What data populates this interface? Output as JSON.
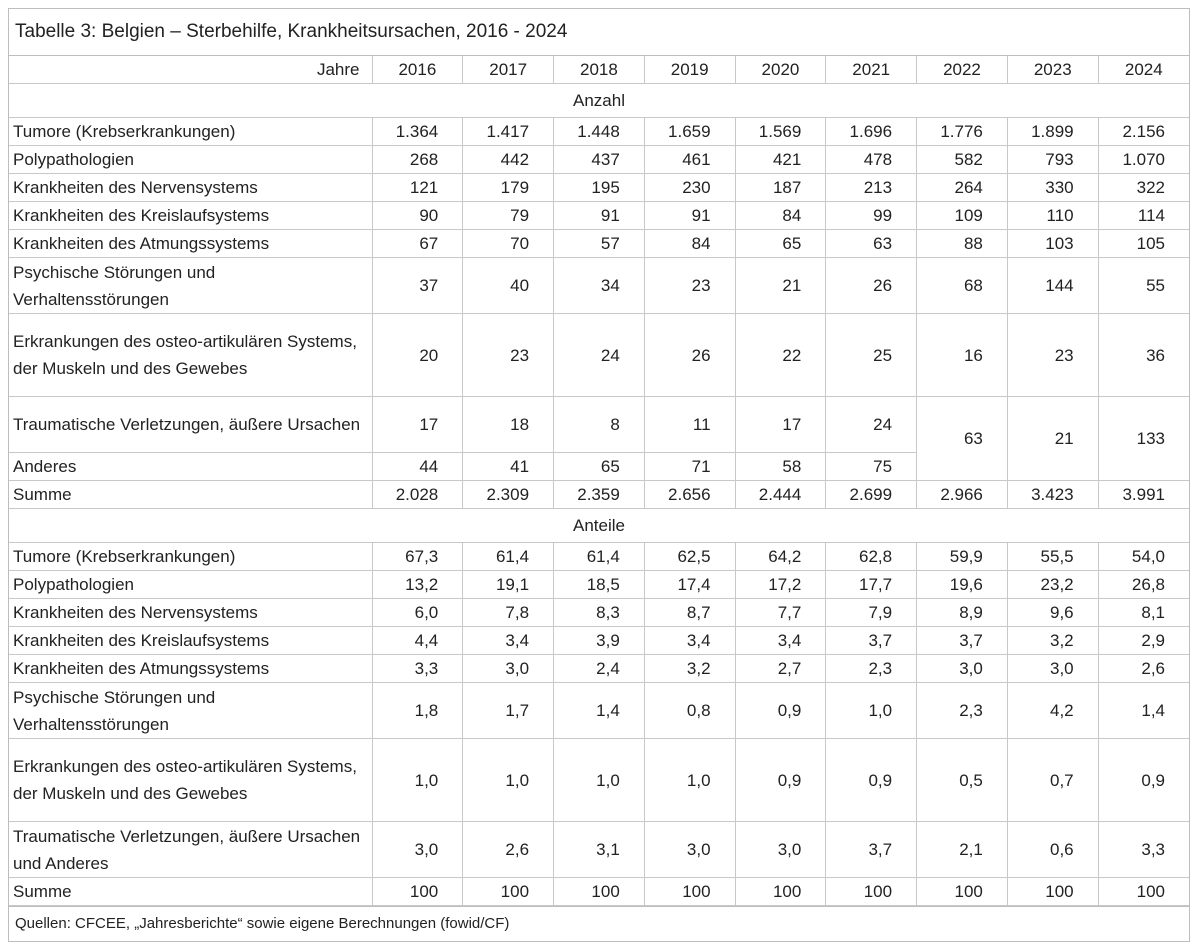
{
  "title": "Tabelle 3: Belgien – Sterbehilfe, Krankheitsursachen, 2016 - 2024",
  "header_label": "Jahre",
  "years": [
    "2016",
    "2017",
    "2018",
    "2019",
    "2020",
    "2021",
    "2022",
    "2023",
    "2024"
  ],
  "sections": [
    {
      "label": "Anzahl",
      "rows": [
        {
          "label": "Tumore (Krebserkrankungen)",
          "lines": 1,
          "values": [
            "1.364",
            "1.417",
            "1.448",
            "1.659",
            "1.569",
            "1.696",
            "1.776",
            "1.899",
            "2.156"
          ]
        },
        {
          "label": "Polypathologien",
          "lines": 1,
          "values": [
            "268",
            "442",
            "437",
            "461",
            "421",
            "478",
            "582",
            "793",
            "1.070"
          ]
        },
        {
          "label": "Krankheiten des Nervensystems",
          "lines": 1,
          "values": [
            "121",
            "179",
            "195",
            "230",
            "187",
            "213",
            "264",
            "330",
            "322"
          ]
        },
        {
          "label": "Krankheiten des Kreislaufsystems",
          "lines": 1,
          "values": [
            "90",
            "79",
            "91",
            "91",
            "84",
            "99",
            "109",
            "110",
            "114"
          ]
        },
        {
          "label": "Krankheiten des Atmungssystems",
          "lines": 1,
          "values": [
            "67",
            "70",
            "57",
            "84",
            "65",
            "63",
            "88",
            "103",
            "105"
          ]
        },
        {
          "label": "Psychische Störungen und Verhaltensstörungen",
          "lines": 2,
          "values": [
            "37",
            "40",
            "34",
            "23",
            "21",
            "26",
            "68",
            "144",
            "55"
          ]
        },
        {
          "label": "Erkrankungen des osteo-artikulären Systems, der Muskeln und des Gewebes",
          "lines": 3,
          "values": [
            "20",
            "23",
            "24",
            "26",
            "22",
            "25",
            "16",
            "23",
            "36"
          ]
        },
        {
          "label": "Traumatische Verletzungen, äußere Ursachen",
          "lines": 2,
          "values": [
            "17",
            "18",
            "8",
            "11",
            "17",
            "24",
            "63",
            "21",
            "133"
          ],
          "merge_last": 3
        },
        {
          "label": "Anderes",
          "lines": 1,
          "values": [
            "44",
            "41",
            "65",
            "71",
            "58",
            "75"
          ]
        },
        {
          "label": "Summe",
          "lines": 1,
          "values": [
            "2.028",
            "2.309",
            "2.359",
            "2.656",
            "2.444",
            "2.699",
            "2.966",
            "3.423",
            "3.991"
          ]
        }
      ]
    },
    {
      "label": "Anteile",
      "rows": [
        {
          "label": "Tumore (Krebserkrankungen)",
          "lines": 1,
          "values": [
            "67,3",
            "61,4",
            "61,4",
            "62,5",
            "64,2",
            "62,8",
            "59,9",
            "55,5",
            "54,0"
          ]
        },
        {
          "label": "Polypathologien",
          "lines": 1,
          "values": [
            "13,2",
            "19,1",
            "18,5",
            "17,4",
            "17,2",
            "17,7",
            "19,6",
            "23,2",
            "26,8"
          ]
        },
        {
          "label": "Krankheiten des Nervensystems",
          "lines": 1,
          "values": [
            "6,0",
            "7,8",
            "8,3",
            "8,7",
            "7,7",
            "7,9",
            "8,9",
            "9,6",
            "8,1"
          ]
        },
        {
          "label": "Krankheiten des Kreislaufsystems",
          "lines": 1,
          "values": [
            "4,4",
            "3,4",
            "3,9",
            "3,4",
            "3,4",
            "3,7",
            "3,7",
            "3,2",
            "2,9"
          ]
        },
        {
          "label": "Krankheiten des Atmungssystems",
          "lines": 1,
          "values": [
            "3,3",
            "3,0",
            "2,4",
            "3,2",
            "2,7",
            "2,3",
            "3,0",
            "3,0",
            "2,6"
          ]
        },
        {
          "label": "Psychische Störungen und Verhaltensstörungen",
          "lines": 2,
          "values": [
            "1,8",
            "1,7",
            "1,4",
            "0,8",
            "0,9",
            "1,0",
            "2,3",
            "4,2",
            "1,4"
          ]
        },
        {
          "label": "Erkrankungen des osteo-artikulären Systems, der Muskeln und des Gewebes",
          "lines": 3,
          "values": [
            "1,0",
            "1,0",
            "1,0",
            "1,0",
            "0,9",
            "0,9",
            "0,5",
            "0,7",
            "0,9"
          ]
        },
        {
          "label": "Traumatische Verletzungen, äußere Ursachen und Anderes",
          "lines": 2,
          "values": [
            "3,0",
            "2,6",
            "3,1",
            "3,0",
            "3,0",
            "3,7",
            "2,1",
            "0,6",
            "3,3"
          ]
        },
        {
          "label": "Summe",
          "lines": 1,
          "values": [
            "100",
            "100",
            "100",
            "100",
            "100",
            "100",
            "100",
            "100",
            "100"
          ]
        }
      ]
    }
  ],
  "footer": "Quellen: CFCEE, „Jahresberichte“ sowie eigene Berechnungen (fowid/CF)"
}
